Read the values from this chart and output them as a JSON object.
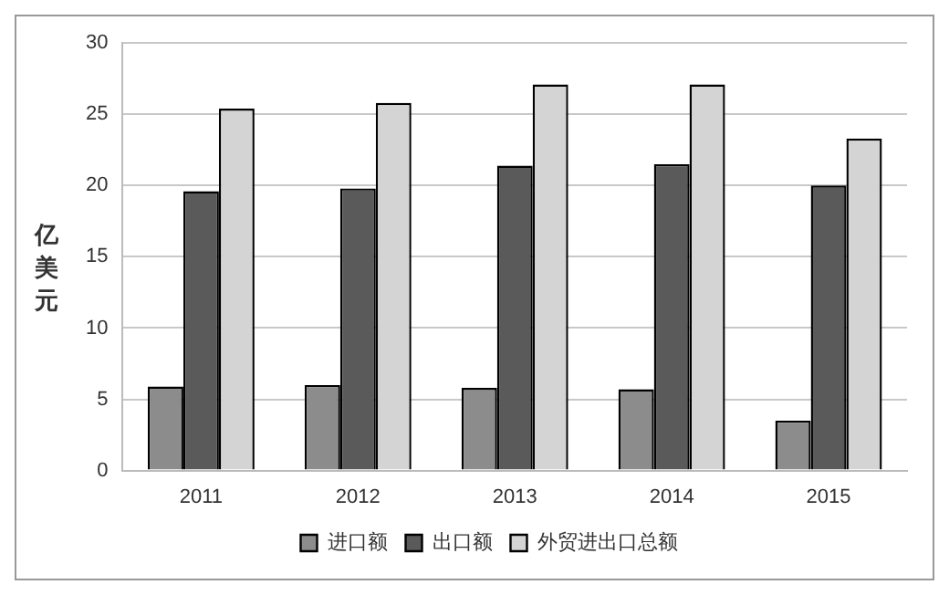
{
  "chart_data": {
    "type": "bar",
    "ylabel": "亿美元",
    "categories": [
      "2011",
      "2012",
      "2013",
      "2014",
      "2015"
    ],
    "series": [
      {
        "name": "进口额",
        "color": "#8c8c8c",
        "values": [
          5.9,
          6.0,
          5.8,
          5.7,
          3.5
        ]
      },
      {
        "name": "出口额",
        "color": "#5a5a5a",
        "values": [
          19.6,
          19.8,
          21.4,
          21.5,
          20.0
        ]
      },
      {
        "name": "外贸进出口总额",
        "color": "#d4d4d4",
        "values": [
          25.4,
          25.8,
          27.1,
          27.1,
          23.3
        ]
      }
    ],
    "ylim": [
      0,
      30
    ],
    "yticks": [
      0,
      5,
      10,
      15,
      20,
      25,
      30
    ],
    "grid": "y",
    "legend": "bottom"
  }
}
